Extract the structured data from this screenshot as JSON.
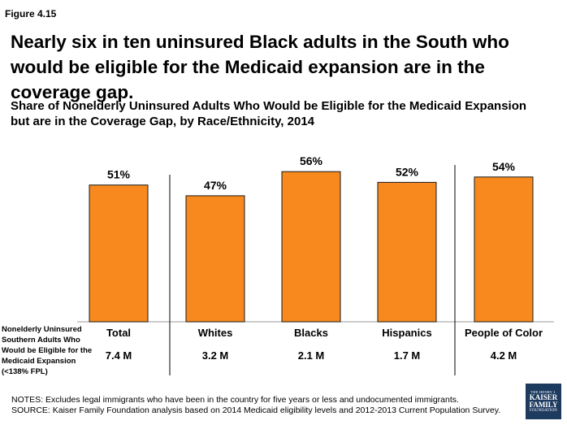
{
  "figure_label": "Figure 4.15",
  "headline": "Nearly six in ten uninsured Black adults in the South who would be eligible for the Medicaid expansion are in the coverage gap.",
  "subtitle_line1": "Share of Nonelderly Uninsured Adults Who Would be Eligible for the Medicaid Expansion",
  "subtitle_line2": "but are in the Coverage Gap,  by Race/Ethnicity, 2014",
  "row_label": [
    "Nonelderly Uninsured",
    "Southern Adults  Who",
    "Would be Eligible for the",
    "Medicaid Expansion",
    "(<138% FPL)"
  ],
  "chart_data": {
    "type": "bar",
    "title": "Share of Nonelderly Uninsured Adults Who Would be Eligible for the Medicaid Expansion but are in the Coverage Gap,  by Race/Ethnicity, 2014",
    "categories": [
      "Total",
      "Whites",
      "Blacks",
      "Hispanics",
      "People of Color"
    ],
    "values": [
      51,
      47,
      56,
      52,
      54
    ],
    "data_labels": [
      "51%",
      "47%",
      "56%",
      "52%",
      "54%"
    ],
    "population_labels": [
      "7.4 M",
      "3.2 M",
      "2.1 M",
      "1.7 M",
      "4.2 M"
    ],
    "ylim": [
      0,
      100
    ],
    "xlabel": "",
    "ylabel": "",
    "bar_color": "#F7891E",
    "bar_outline": "#1a1a1a"
  },
  "notes": {
    "line1": "NOTES: Excludes legal immigrants who have been in the country for five years or less and undocumented immigrants.",
    "line2": "SOURCE: Kaiser Family Foundation analysis based on 2014 Medicaid eligibility levels and 2012-2013 Current Population Survey."
  },
  "logo": {
    "line1": "THE HENRY J.",
    "line2": "KAISER",
    "line3": "FAMILY",
    "line4": "FOUNDATION"
  }
}
